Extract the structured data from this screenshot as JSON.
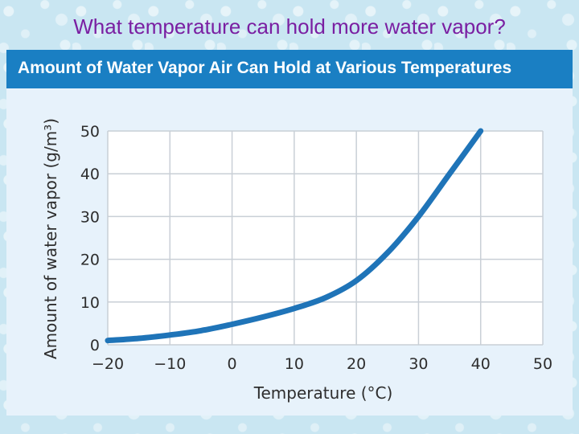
{
  "slide": {
    "title": "What temperature can hold more water vapor?"
  },
  "colors": {
    "title": "#7a1fa2",
    "header_bg": "#1a7fc3",
    "plot_bg": "#ffffff",
    "grid": "#c9cfd6",
    "curve": "#1f74b8"
  },
  "chart_data": {
    "type": "line",
    "title": "Amount of Water Vapor Air Can Hold at Various Temperatures",
    "xlabel": "Temperature (°C)",
    "ylabel": "Amount of water vapor (g/m³)",
    "xlim": [
      -20,
      50
    ],
    "ylim": [
      0,
      50
    ],
    "xticks": [
      -20,
      -10,
      0,
      10,
      20,
      30,
      40,
      50
    ],
    "yticks": [
      0,
      10,
      20,
      30,
      40,
      50
    ],
    "xtick_labels": [
      "−20",
      "−10",
      "0",
      "10",
      "20",
      "30",
      "40",
      "50"
    ],
    "ytick_labels": [
      "0",
      "10",
      "20",
      "30",
      "40",
      "50"
    ],
    "grid": true,
    "legend": "none",
    "series": [
      {
        "x": [
          -20,
          -15,
          -10,
          -5,
          0,
          5,
          10,
          15,
          20,
          25,
          30,
          35,
          40
        ],
        "y": [
          1,
          1.5,
          2.3,
          3.3,
          4.8,
          6.5,
          8.5,
          11,
          15,
          21.5,
          30,
          40,
          50
        ]
      }
    ]
  }
}
